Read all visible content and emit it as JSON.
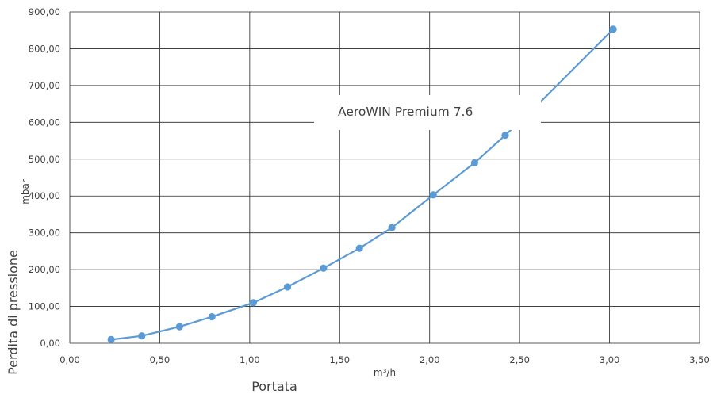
{
  "chart_data": {
    "type": "line",
    "title": "",
    "xlabel": "Portata",
    "xunit": "m³/h",
    "ylabel": "Perdita di pressione",
    "yunit": "mbar",
    "xlim": [
      0,
      3.5
    ],
    "ylim": [
      0,
      900
    ],
    "xticks": [
      "0,00",
      "0,50",
      "1,00",
      "1,50",
      "2,00",
      "2,50",
      "3,00",
      "3,50"
    ],
    "yticks": [
      "0,00",
      "100,00",
      "200,00",
      "300,00",
      "400,00",
      "500,00",
      "600,00",
      "700,00",
      "800,00",
      "900,00"
    ],
    "grid": true,
    "legend": false,
    "series": [
      {
        "name": "AeroWIN Premium 7.6",
        "color": "#5b9bd5",
        "x": [
          0.23,
          0.4,
          0.61,
          0.79,
          1.02,
          1.21,
          1.41,
          1.61,
          1.79,
          2.02,
          2.25,
          2.42,
          2.58,
          3.02
        ],
        "y": [
          10,
          20,
          45,
          72,
          110,
          153,
          204,
          258,
          314,
          403,
          490,
          565,
          638,
          853
        ]
      }
    ]
  }
}
